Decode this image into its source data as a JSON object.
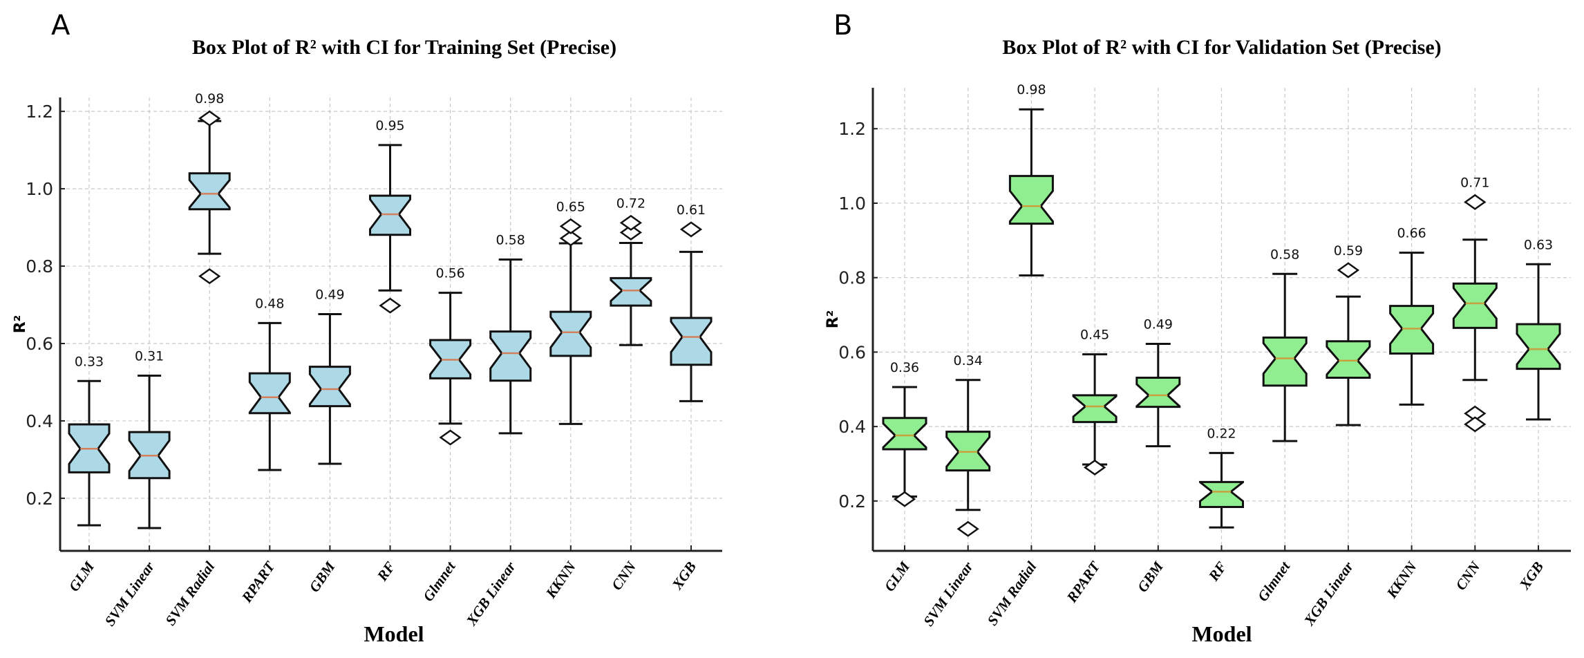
{
  "figure": {
    "panels": [
      {
        "letter": "A",
        "title": "Box Plot of R² with CI for Training Set (Precise)",
        "box_color": "#add8e6",
        "median_color": "#d2805a"
      },
      {
        "letter": "B",
        "title": "Box Plot of R² with CI for Validation Set (Precise)",
        "box_color": "#90ee90",
        "median_color": "#c8a040"
      }
    ]
  },
  "chart_data": [
    {
      "type": "box",
      "notched": true,
      "title": "Box Plot of R² with CI for Training Set (Precise)",
      "xlabel": "Model",
      "ylabel": "R²",
      "ylim": [
        0.064,
        1.236
      ],
      "yticks": [
        0.2,
        0.4,
        0.6,
        0.8,
        1.0,
        1.2
      ],
      "ytick_labels": [
        "0.2",
        "0.4",
        "0.6",
        "0.8",
        "1.0",
        "1.2"
      ],
      "grid": true,
      "categories": [
        "GLM",
        "SVM Linear",
        "SVM Radial",
        "RPART",
        "GBM",
        "RF",
        "Glmnet",
        "XGB Linear",
        "KKNN",
        "CNN",
        "XGB"
      ],
      "annotations": [
        "0.33",
        "0.31",
        "0.98",
        "0.48",
        "0.49",
        "0.95",
        "0.56",
        "0.58",
        "0.65",
        "0.72",
        "0.61"
      ],
      "boxes": [
        {
          "whislo": 0.13,
          "q1": 0.267,
          "med": 0.328,
          "q3": 0.391,
          "whishi": 0.503,
          "fliers": []
        },
        {
          "whislo": 0.123,
          "q1": 0.252,
          "med": 0.31,
          "q3": 0.371,
          "whishi": 0.517,
          "fliers": []
        },
        {
          "whislo": 0.832,
          "q1": 0.947,
          "med": 0.987,
          "q3": 1.04,
          "whishi": 1.175,
          "fliers": [
            1.182,
            0.774
          ]
        },
        {
          "whislo": 0.273,
          "q1": 0.42,
          "med": 0.461,
          "q3": 0.523,
          "whishi": 0.653,
          "fliers": []
        },
        {
          "whislo": 0.289,
          "q1": 0.438,
          "med": 0.482,
          "q3": 0.54,
          "whishi": 0.676,
          "fliers": []
        },
        {
          "whislo": 0.737,
          "q1": 0.881,
          "med": 0.934,
          "q3": 0.982,
          "whishi": 1.113,
          "fliers": [
            0.698
          ]
        },
        {
          "whislo": 0.393,
          "q1": 0.51,
          "med": 0.558,
          "q3": 0.609,
          "whishi": 0.731,
          "fliers": [
            0.357
          ]
        },
        {
          "whislo": 0.368,
          "q1": 0.504,
          "med": 0.575,
          "q3": 0.631,
          "whishi": 0.817,
          "fliers": []
        },
        {
          "whislo": 0.392,
          "q1": 0.568,
          "med": 0.629,
          "q3": 0.682,
          "whishi": 0.859,
          "fliers": [
            0.872,
            0.903
          ]
        },
        {
          "whislo": 0.596,
          "q1": 0.698,
          "med": 0.737,
          "q3": 0.769,
          "whishi": 0.86,
          "fliers": [
            0.887,
            0.912
          ]
        },
        {
          "whislo": 0.451,
          "q1": 0.545,
          "med": 0.617,
          "q3": 0.666,
          "whishi": 0.837,
          "fliers": [
            0.895
          ]
        }
      ]
    },
    {
      "type": "box",
      "notched": true,
      "title": "Box Plot of R² with CI for Validation Set (Precise)",
      "xlabel": "Model",
      "ylabel": "R²",
      "ylim": [
        0.066,
        1.31
      ],
      "yticks": [
        0.2,
        0.4,
        0.6,
        0.8,
        1.0,
        1.2
      ],
      "ytick_labels": [
        "0.2",
        "0.4",
        "0.6",
        "0.8",
        "1.0",
        "1.2"
      ],
      "grid": true,
      "categories": [
        "GLM",
        "SVM Linear",
        "SVM Radial",
        "RPART",
        "GBM",
        "RF",
        "Glmnet",
        "XGB Linear",
        "KKNN",
        "CNN",
        "XGB"
      ],
      "annotations": [
        "0.36",
        "0.34",
        "0.98",
        "0.45",
        "0.49",
        "0.22",
        "0.58",
        "0.59",
        "0.66",
        "0.71",
        "0.63"
      ],
      "boxes": [
        {
          "whislo": 0.212,
          "q1": 0.339,
          "med": 0.376,
          "q3": 0.423,
          "whishi": 0.506,
          "fliers": [
            0.205
          ]
        },
        {
          "whislo": 0.176,
          "q1": 0.282,
          "med": 0.332,
          "q3": 0.386,
          "whishi": 0.525,
          "fliers": [
            0.125
          ]
        },
        {
          "whislo": 0.806,
          "q1": 0.945,
          "med": 0.992,
          "q3": 1.073,
          "whishi": 1.252,
          "fliers": []
        },
        {
          "whislo": 0.298,
          "q1": 0.412,
          "med": 0.454,
          "q3": 0.484,
          "whishi": 0.594,
          "fliers": [
            0.29
          ]
        },
        {
          "whislo": 0.347,
          "q1": 0.453,
          "med": 0.484,
          "q3": 0.531,
          "whishi": 0.622,
          "fliers": []
        },
        {
          "whislo": 0.129,
          "q1": 0.184,
          "med": 0.225,
          "q3": 0.251,
          "whishi": 0.329,
          "fliers": []
        },
        {
          "whislo": 0.361,
          "q1": 0.51,
          "med": 0.583,
          "q3": 0.639,
          "whishi": 0.81,
          "fliers": []
        },
        {
          "whislo": 0.404,
          "q1": 0.531,
          "med": 0.577,
          "q3": 0.629,
          "whishi": 0.749,
          "fliers": [
            0.82
          ]
        },
        {
          "whislo": 0.459,
          "q1": 0.596,
          "med": 0.663,
          "q3": 0.724,
          "whishi": 0.867,
          "fliers": []
        },
        {
          "whislo": 0.525,
          "q1": 0.665,
          "med": 0.731,
          "q3": 0.784,
          "whishi": 0.902,
          "fliers": [
            1.003,
            0.435,
            0.406
          ]
        },
        {
          "whislo": 0.419,
          "q1": 0.555,
          "med": 0.608,
          "q3": 0.675,
          "whishi": 0.836,
          "fliers": []
        }
      ]
    }
  ]
}
